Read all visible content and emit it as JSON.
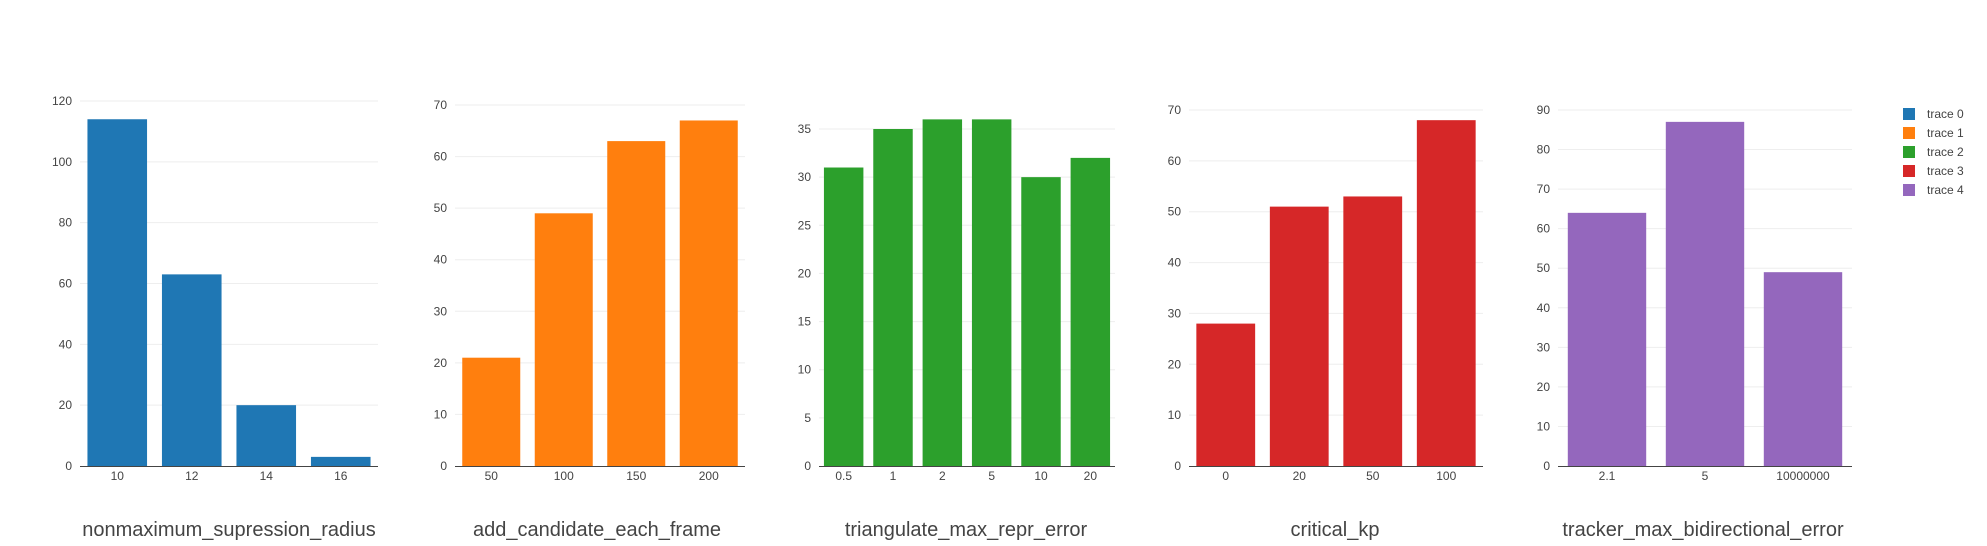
{
  "chart_data": [
    {
      "type": "bar",
      "xlabel": "nonmaximum_supression_radius",
      "categories": [
        "10",
        "12",
        "14",
        "16"
      ],
      "values": [
        114,
        63,
        20,
        3
      ],
      "ylim": [
        0,
        120
      ],
      "yticks": [
        0,
        20,
        40,
        60,
        80,
        100,
        120
      ],
      "series_name": "trace 0",
      "color": "#1f77b4"
    },
    {
      "type": "bar",
      "xlabel": "add_candidate_each_frame",
      "categories": [
        "50",
        "100",
        "150",
        "200"
      ],
      "values": [
        21,
        49,
        63,
        67
      ],
      "ylim": [
        0,
        70
      ],
      "yticks": [
        0,
        10,
        20,
        30,
        40,
        50,
        60,
        70
      ],
      "series_name": "trace 1",
      "color": "#ff7f0e"
    },
    {
      "type": "bar",
      "xlabel": "triangulate_max_repr_error",
      "categories": [
        "0.5",
        "1",
        "2",
        "5",
        "10",
        "20"
      ],
      "values": [
        31,
        35,
        36,
        36,
        30,
        32
      ],
      "ylim": [
        0,
        35
      ],
      "yticks": [
        0,
        5,
        10,
        15,
        20,
        25,
        30,
        35
      ],
      "series_name": "trace 2",
      "color": "#2ca02c"
    },
    {
      "type": "bar",
      "xlabel": "critical_kp",
      "categories": [
        "0",
        "20",
        "50",
        "100"
      ],
      "values": [
        28,
        51,
        53,
        68
      ],
      "ylim": [
        0,
        70
      ],
      "yticks": [
        0,
        10,
        20,
        30,
        40,
        50,
        60,
        70
      ],
      "series_name": "trace 3",
      "color": "#d62728"
    },
    {
      "type": "bar",
      "xlabel": "tracker_max_bidirectional_error",
      "categories": [
        "2.1",
        "5",
        "10000000"
      ],
      "values": [
        64,
        87,
        49
      ],
      "ylim": [
        0,
        90
      ],
      "yticks": [
        0,
        10,
        20,
        30,
        40,
        50,
        60,
        70,
        80,
        90
      ],
      "series_name": "trace 4",
      "color": "#9467bd"
    }
  ],
  "legend": {
    "position": "top-right",
    "items": [
      {
        "label": "trace 0",
        "color": "#1f77b4"
      },
      {
        "label": "trace 1",
        "color": "#ff7f0e"
      },
      {
        "label": "trace 2",
        "color": "#2ca02c"
      },
      {
        "label": "trace 3",
        "color": "#d62728"
      },
      {
        "label": "trace 4",
        "color": "#9467bd"
      }
    ]
  }
}
